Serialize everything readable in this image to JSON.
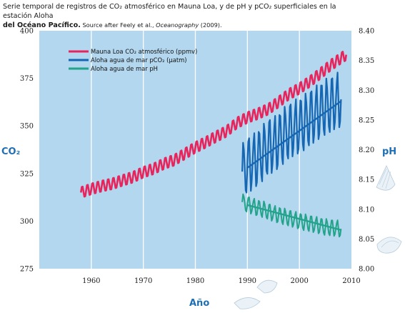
{
  "title": {
    "line1": "Serie temporal de  registros de CO₂ atmosférico en Mauna Loa, y de pH y pCO₂ superficiales en la estación Aloha",
    "line2_bold": "del Océano Pacífico.",
    "source_prefix": " Source after Feely et al., ",
    "source_journal": "Oceanography",
    "source_suffix": " (2009)."
  },
  "colors": {
    "plot_bg": "#b3d7ef",
    "co2": "#e8245c",
    "pco2": "#1566b3",
    "ph": "#22a38a",
    "axis_title": "#1f6fb5"
  },
  "chart_data": {
    "type": "line",
    "xlabel": "Año",
    "ylabel_left": "CO₂",
    "ylabel_right": "pH",
    "xlim": [
      1950,
      2010
    ],
    "ylim_left": [
      275,
      400
    ],
    "ylim_right": [
      8.0,
      8.4
    ],
    "x_ticks": [
      "1960",
      "1970",
      "1980",
      "1990",
      "2000",
      "2010"
    ],
    "y_ticks_left": [
      "275",
      "300",
      "325",
      "350",
      "375",
      "400"
    ],
    "y_ticks_right": [
      "8.00",
      "8.05",
      "8.10",
      "8.15",
      "8.20",
      "8.25",
      "8.30",
      "8.35",
      "8.40"
    ],
    "grid": "vertical lines at each decade",
    "legend": "top-left",
    "series": [
      {
        "name": "Mauna Loa CO₂ atmosférico (ppmv)",
        "axis": "left",
        "annual_mean_x": [
          1958,
          1960,
          1962,
          1964,
          1966,
          1968,
          1970,
          1972,
          1974,
          1976,
          1978,
          1980,
          1982,
          1984,
          1986,
          1988,
          1990,
          1992,
          1994,
          1996,
          1998,
          2000,
          2002,
          2004,
          2006,
          2008,
          2009
        ],
        "annual_mean_y": [
          315,
          316.9,
          318.4,
          319.6,
          321.4,
          323.1,
          325.7,
          327.5,
          330.2,
          332.1,
          335.4,
          338.7,
          341.4,
          344.4,
          347.2,
          351.6,
          354.4,
          356.4,
          358.8,
          362.6,
          366.7,
          369.7,
          373.3,
          377.5,
          381.9,
          385.6,
          387.4
        ],
        "seasonal_amplitude": 3.2,
        "trend_line": null
      },
      {
        "name": "Aloha agua de mar pCO₂ (µatm)",
        "axis": "left",
        "annual_mean_x": [
          1989,
          1990,
          1991,
          1992,
          1993,
          1994,
          1995,
          1996,
          1997,
          1998,
          1999,
          2000,
          2001,
          2002,
          2003,
          2004,
          2005,
          2006,
          2007,
          2008
        ],
        "annual_mean_y": [
          326,
          329,
          331,
          333,
          336,
          339,
          340,
          342,
          345,
          347,
          349,
          350,
          352,
          354,
          356,
          358,
          360,
          361,
          363,
          364
        ],
        "seasonal_amplitude": 17,
        "trend_line": {
          "x": [
            1990,
            2008
          ],
          "y": [
            328,
            363
          ]
        }
      },
      {
        "name": "Aloha agua de mar pH",
        "axis": "right",
        "annual_mean_x": [
          1989,
          1990,
          1991,
          1992,
          1993,
          1994,
          1995,
          1996,
          1997,
          1998,
          1999,
          2000,
          2001,
          2002,
          2003,
          2004,
          2005,
          2006,
          2007,
          2008
        ],
        "annual_mean_y": [
          8.112,
          8.108,
          8.105,
          8.102,
          8.1,
          8.096,
          8.093,
          8.09,
          8.088,
          8.085,
          8.083,
          8.08,
          8.078,
          8.076,
          8.074,
          8.072,
          8.07,
          8.069,
          8.068,
          8.067
        ],
        "seasonal_amplitude": 0.016,
        "trend_line": {
          "x": [
            1990,
            2008
          ],
          "y": [
            8.107,
            8.065
          ]
        }
      }
    ]
  }
}
